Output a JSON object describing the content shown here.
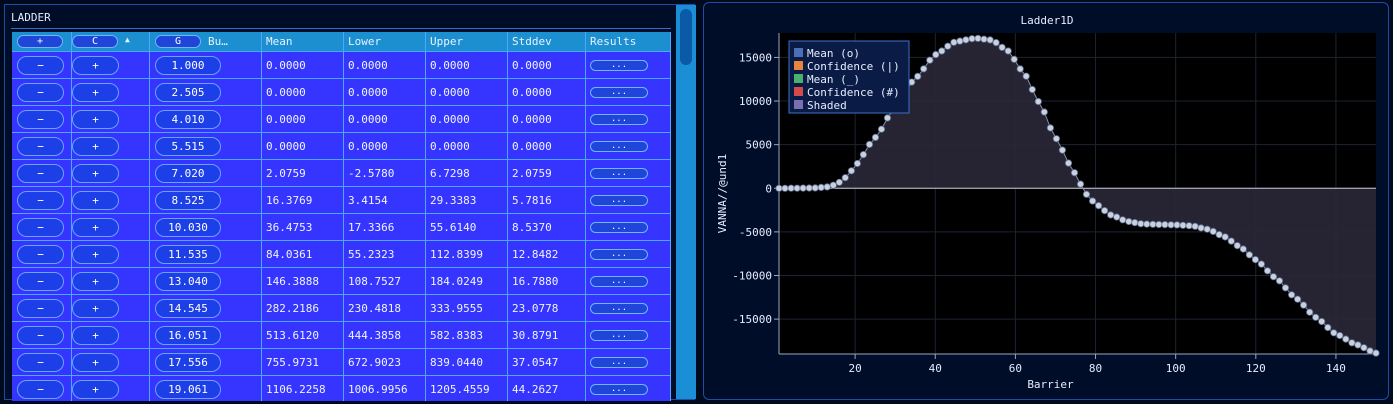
{
  "panel_title": "LADDER",
  "table": {
    "header": {
      "plus_label": "+",
      "c_label": "C",
      "sort_icon": "▲",
      "g_label": "G",
      "bump_label": "Bu…",
      "mean": "Mean",
      "lower": "Lower",
      "upper": "Upper",
      "stddev": "Stddev",
      "results": "Results"
    },
    "minus_label": "−",
    "plus_label": "+",
    "results_label": "...",
    "rows": [
      {
        "bump": "1.000",
        "mean": "0.0000",
        "lower": "0.0000",
        "upper": "0.0000",
        "stddev": "0.0000"
      },
      {
        "bump": "2.505",
        "mean": "0.0000",
        "lower": "0.0000",
        "upper": "0.0000",
        "stddev": "0.0000"
      },
      {
        "bump": "4.010",
        "mean": "0.0000",
        "lower": "0.0000",
        "upper": "0.0000",
        "stddev": "0.0000"
      },
      {
        "bump": "5.515",
        "mean": "0.0000",
        "lower": "0.0000",
        "upper": "0.0000",
        "stddev": "0.0000"
      },
      {
        "bump": "7.020",
        "mean": "2.0759",
        "lower": "-2.5780",
        "upper": "6.7298",
        "stddev": "2.0759"
      },
      {
        "bump": "8.525",
        "mean": "16.3769",
        "lower": "3.4154",
        "upper": "29.3383",
        "stddev": "5.7816"
      },
      {
        "bump": "10.030",
        "mean": "36.4753",
        "lower": "17.3366",
        "upper": "55.6140",
        "stddev": "8.5370"
      },
      {
        "bump": "11.535",
        "mean": "84.0361",
        "lower": "55.2323",
        "upper": "112.8399",
        "stddev": "12.8482"
      },
      {
        "bump": "13.040",
        "mean": "146.3888",
        "lower": "108.7527",
        "upper": "184.0249",
        "stddev": "16.7880"
      },
      {
        "bump": "14.545",
        "mean": "282.2186",
        "lower": "230.4818",
        "upper": "333.9555",
        "stddev": "23.0778"
      },
      {
        "bump": "16.051",
        "mean": "513.6120",
        "lower": "444.3858",
        "upper": "582.8383",
        "stddev": "30.8791"
      },
      {
        "bump": "17.556",
        "mean": "755.9731",
        "lower": "672.9023",
        "upper": "839.0440",
        "stddev": "37.0547"
      },
      {
        "bump": "19.061",
        "mean": "1106.2258",
        "lower": "1006.9956",
        "upper": "1205.4559",
        "stddev": "44.2627"
      }
    ]
  },
  "chart_data": {
    "type": "line",
    "title": "Ladder1D",
    "xlabel": "Barrier",
    "ylabel": "VANNA//@und1",
    "xlim": [
      1,
      150
    ],
    "ylim": [
      -19000,
      17800
    ],
    "xticks": [
      20,
      40,
      60,
      80,
      100,
      120,
      140
    ],
    "yticks": [
      15000,
      10000,
      5000,
      0,
      -5000,
      -10000,
      -15000
    ],
    "grid": true,
    "legend_position": "top-left",
    "legend": [
      {
        "label": "Mean (o)",
        "color": "#4a6fb5"
      },
      {
        "label": "Confidence (|)",
        "color": "#e8843c"
      },
      {
        "label": "Mean (_)",
        "color": "#4caf6e"
      },
      {
        "label": "Confidence (#)",
        "color": "#d24a4a"
      },
      {
        "label": "Shaded",
        "color": "#7a6fb0"
      }
    ],
    "series_points": [
      [
        1,
        0
      ],
      [
        5,
        5
      ],
      [
        10,
        45
      ],
      [
        13,
        150
      ],
      [
        15,
        400
      ],
      [
        18,
        1300
      ],
      [
        20,
        2600
      ],
      [
        25,
        5800
      ],
      [
        30,
        9300
      ],
      [
        35,
        12600
      ],
      [
        40,
        15300
      ],
      [
        45,
        16800
      ],
      [
        50,
        17200
      ],
      [
        54,
        17000
      ],
      [
        58,
        15800
      ],
      [
        62,
        13300
      ],
      [
        66,
        9800
      ],
      [
        70,
        5800
      ],
      [
        74,
        2400
      ],
      [
        76,
        600
      ],
      [
        78,
        -800
      ],
      [
        80,
        -1800
      ],
      [
        84,
        -3100
      ],
      [
        88,
        -3800
      ],
      [
        92,
        -4100
      ],
      [
        96,
        -4150
      ],
      [
        100,
        -4200
      ],
      [
        104,
        -4300
      ],
      [
        108,
        -4700
      ],
      [
        112,
        -5500
      ],
      [
        116,
        -6700
      ],
      [
        120,
        -8200
      ],
      [
        125,
        -10300
      ],
      [
        130,
        -12600
      ],
      [
        135,
        -14800
      ],
      [
        140,
        -16700
      ],
      [
        145,
        -17900
      ],
      [
        150,
        -18900
      ]
    ]
  }
}
